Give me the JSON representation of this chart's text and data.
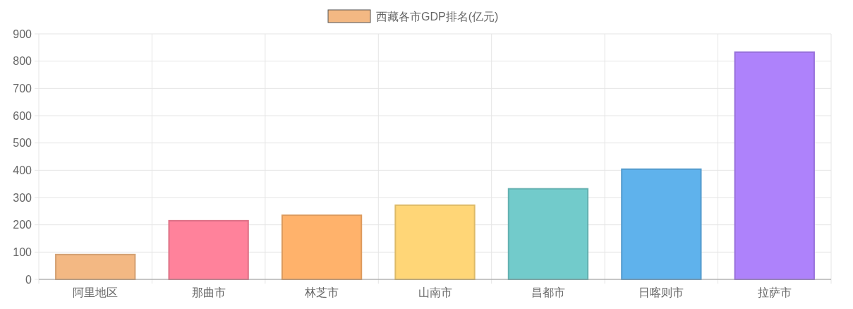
{
  "chart_data": {
    "type": "bar",
    "categories": [
      "阿里地区",
      "那曲市",
      "林芝市",
      "山南市",
      "昌都市",
      "日喀则市",
      "拉萨市"
    ],
    "series": [
      {
        "name": "西藏各市GDP排名(亿元)",
        "colors": [
          "#f3b883",
          "#ff829b",
          "#ffb26b",
          "#ffd677",
          "#72cbcb",
          "#5fb2ec",
          "#ae82fb"
        ],
        "values": [
          91,
          215,
          235,
          272,
          332,
          404,
          833
        ]
      }
    ],
    "ylim": [
      0,
      900
    ],
    "yticks": [
      0,
      100,
      200,
      300,
      400,
      500,
      600,
      700,
      800,
      900
    ],
    "grid": true,
    "legend": "top"
  }
}
